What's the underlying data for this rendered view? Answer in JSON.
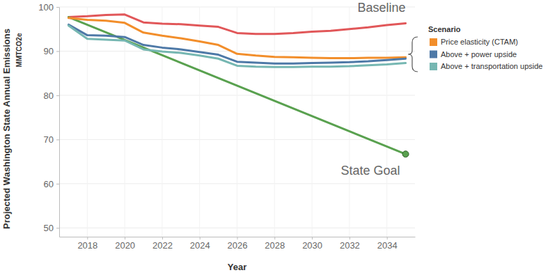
{
  "chart_data": {
    "type": "line",
    "y_label": "Projected Washington State Annual Emissions",
    "y_label_sub": "MMTCO2e",
    "x_label": "Year",
    "legend_title": "Scenario",
    "legend": "right",
    "grid": true,
    "x": [
      2017,
      2018,
      2019,
      2020,
      2021,
      2022,
      2023,
      2024,
      2025,
      2026,
      2027,
      2028,
      2029,
      2030,
      2031,
      2032,
      2033,
      2034,
      2035
    ],
    "xlim": [
      2016.5,
      2035.5
    ],
    "xticks": [
      2018,
      2020,
      2022,
      2024,
      2026,
      2028,
      2030,
      2032,
      2034
    ],
    "ylim": [
      48,
      100
    ],
    "yticks": [
      50,
      60,
      70,
      80,
      90,
      100
    ],
    "series": [
      {
        "name": "Baseline",
        "color": "#e15759",
        "values": [
          97.7,
          97.9,
          98.2,
          98.3,
          96.5,
          96.2,
          96.1,
          95.8,
          95.5,
          94.1,
          93.9,
          93.9,
          94.1,
          94.4,
          94.6,
          95.0,
          95.4,
          95.9,
          96.3
        ]
      },
      {
        "name": "State Goal",
        "color": "#59a14f",
        "marker": "circle",
        "x": [
          2017,
          2035
        ],
        "values": [
          97.7,
          66.7
        ]
      },
      {
        "name": "Price elasticity (CTAM)",
        "color": "#f28e2b",
        "values": [
          97.5,
          97.1,
          96.9,
          96.4,
          94.2,
          93.5,
          92.9,
          92.2,
          91.4,
          89.4,
          89.0,
          88.7,
          88.6,
          88.5,
          88.4,
          88.4,
          88.5,
          88.5,
          88.6
        ]
      },
      {
        "name": "Above + power upside",
        "color": "#4e79a7",
        "values": [
          96.0,
          93.6,
          93.5,
          93.2,
          91.4,
          90.8,
          90.4,
          89.8,
          89.2,
          87.6,
          87.4,
          87.2,
          87.2,
          87.3,
          87.4,
          87.5,
          87.7,
          88.0,
          88.3
        ]
      },
      {
        "name": "Above + transportation upside",
        "color": "#76b7b2",
        "values": [
          95.8,
          92.8,
          92.6,
          92.4,
          90.4,
          89.9,
          89.6,
          89.0,
          88.3,
          86.7,
          86.5,
          86.4,
          86.4,
          86.5,
          86.5,
          86.6,
          86.8,
          87.0,
          87.3
        ]
      }
    ]
  }
}
